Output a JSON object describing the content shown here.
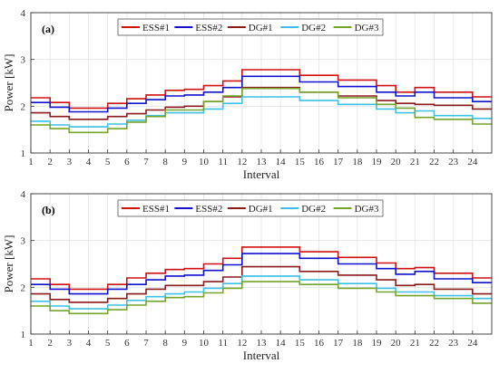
{
  "chart_data": [
    {
      "type": "line",
      "panel_label": "(a)",
      "xlabel": "Interval",
      "ylabel": "Power [kW]",
      "xlim": [
        1,
        25
      ],
      "ylim": [
        1,
        4
      ],
      "xticks": [
        "1",
        "2",
        "3",
        "4",
        "5",
        "6",
        "7",
        "8",
        "9",
        "10",
        "11",
        "12",
        "13",
        "14",
        "15",
        "16",
        "17",
        "18",
        "19",
        "20",
        "21",
        "22",
        "23",
        "24"
      ],
      "yticks": [
        "1",
        "2",
        "3",
        "4"
      ],
      "grid": true,
      "legend_position": "top-center",
      "x": [
        1,
        2,
        3,
        4,
        5,
        6,
        7,
        8,
        9,
        10,
        11,
        12,
        13,
        14,
        15,
        16,
        17,
        18,
        19,
        20,
        21,
        22,
        23,
        24
      ],
      "series": [
        {
          "name": "ESS#1",
          "color": "#d01010",
          "values": [
            2.18,
            2.08,
            1.96,
            1.96,
            2.06,
            2.16,
            2.24,
            2.34,
            2.36,
            2.44,
            2.54,
            2.78,
            2.78,
            2.78,
            2.66,
            2.66,
            2.56,
            2.56,
            2.44,
            2.3,
            2.4,
            2.3,
            2.3,
            2.2
          ]
        },
        {
          "name": "ESS#2",
          "color": "#1010d0",
          "values": [
            2.08,
            1.98,
            1.88,
            1.88,
            1.96,
            2.06,
            2.14,
            2.22,
            2.24,
            2.3,
            2.4,
            2.64,
            2.64,
            2.64,
            2.52,
            2.52,
            2.42,
            2.42,
            2.3,
            2.22,
            2.3,
            2.18,
            2.18,
            2.1
          ]
        },
        {
          "name": "DG#1",
          "color": "#8b1a1a",
          "values": [
            1.86,
            1.78,
            1.72,
            1.72,
            1.78,
            1.84,
            1.92,
            1.98,
            2.0,
            2.1,
            2.2,
            2.4,
            2.4,
            2.4,
            2.3,
            2.3,
            2.22,
            2.22,
            2.12,
            2.06,
            2.04,
            2.02,
            2.02,
            1.94
          ]
        },
        {
          "name": "DG#2",
          "color": "#3cc0e6",
          "values": [
            1.68,
            1.6,
            1.56,
            1.56,
            1.62,
            1.7,
            1.8,
            1.86,
            1.86,
            1.94,
            2.06,
            2.2,
            2.2,
            2.2,
            2.12,
            2.12,
            2.04,
            2.04,
            1.94,
            1.86,
            1.9,
            1.8,
            1.8,
            1.74
          ]
        },
        {
          "name": "DG#3",
          "color": "#76a32a",
          "values": [
            1.6,
            1.52,
            1.44,
            1.44,
            1.52,
            1.66,
            1.78,
            1.92,
            1.92,
            2.1,
            2.22,
            2.38,
            2.38,
            2.38,
            2.3,
            2.3,
            2.18,
            2.18,
            2.04,
            1.96,
            1.76,
            1.72,
            1.72,
            1.62
          ]
        }
      ]
    },
    {
      "type": "line",
      "panel_label": "(b)",
      "xlabel": "Interval",
      "ylabel": "Power [kW]",
      "xlim": [
        1,
        25
      ],
      "ylim": [
        1,
        4
      ],
      "xticks": [
        "1",
        "2",
        "3",
        "4",
        "5",
        "6",
        "7",
        "8",
        "9",
        "10",
        "11",
        "12",
        "13",
        "14",
        "15",
        "16",
        "17",
        "18",
        "19",
        "20",
        "21",
        "22",
        "23",
        "24"
      ],
      "yticks": [
        "1",
        "2",
        "3",
        "4"
      ],
      "grid": true,
      "legend_position": "top-center",
      "x": [
        1,
        2,
        3,
        4,
        5,
        6,
        7,
        8,
        9,
        10,
        11,
        12,
        13,
        14,
        15,
        16,
        17,
        18,
        19,
        20,
        21,
        22,
        23,
        24
      ],
      "series": [
        {
          "name": "ESS#1",
          "color": "#d01010",
          "values": [
            2.18,
            2.06,
            1.96,
            1.96,
            2.06,
            2.2,
            2.3,
            2.38,
            2.4,
            2.5,
            2.62,
            2.86,
            2.86,
            2.86,
            2.76,
            2.76,
            2.64,
            2.64,
            2.52,
            2.4,
            2.42,
            2.3,
            2.3,
            2.2
          ]
        },
        {
          "name": "ESS#2",
          "color": "#1010d0",
          "values": [
            2.06,
            1.96,
            1.86,
            1.86,
            1.96,
            2.06,
            2.16,
            2.24,
            2.26,
            2.36,
            2.48,
            2.72,
            2.72,
            2.72,
            2.62,
            2.62,
            2.5,
            2.5,
            2.4,
            2.28,
            2.34,
            2.18,
            2.18,
            2.1
          ]
        },
        {
          "name": "DG#1",
          "color": "#8b1a1a",
          "values": [
            1.86,
            1.74,
            1.68,
            1.68,
            1.76,
            1.86,
            1.96,
            2.04,
            2.04,
            2.12,
            2.22,
            2.44,
            2.44,
            2.44,
            2.34,
            2.34,
            2.26,
            2.26,
            2.16,
            2.04,
            2.06,
            1.96,
            1.96,
            1.86
          ]
        },
        {
          "name": "DG#2",
          "color": "#3cc0e6",
          "values": [
            1.7,
            1.6,
            1.54,
            1.54,
            1.62,
            1.72,
            1.8,
            1.86,
            1.9,
            1.98,
            2.08,
            2.24,
            2.24,
            2.24,
            2.16,
            2.16,
            2.08,
            2.08,
            1.98,
            1.9,
            1.9,
            1.82,
            1.82,
            1.76
          ]
        },
        {
          "name": "DG#3",
          "color": "#76a32a",
          "values": [
            1.6,
            1.5,
            1.44,
            1.44,
            1.52,
            1.62,
            1.7,
            1.78,
            1.8,
            1.88,
            1.98,
            2.12,
            2.12,
            2.12,
            2.06,
            2.06,
            1.98,
            1.98,
            1.9,
            1.82,
            1.82,
            1.76,
            1.76,
            1.66
          ]
        }
      ]
    }
  ]
}
